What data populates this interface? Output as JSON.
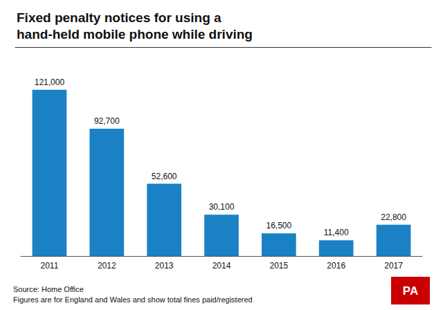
{
  "chart_data": {
    "type": "bar",
    "title": "Fixed penalty notices for using a\nhand-held mobile phone while driving",
    "categories": [
      "2011",
      "2012",
      "2013",
      "2014",
      "2015",
      "2016",
      "2017"
    ],
    "values": [
      121000,
      92700,
      52600,
      30100,
      16500,
      11400,
      22800
    ],
    "value_labels": [
      "121,000",
      "92,700",
      "52,600",
      "30,100",
      "16,500",
      "11,400",
      "22,800"
    ],
    "color": "#1a82c4",
    "ylim": [
      0,
      140000
    ],
    "grid": false,
    "tick_labels": "x",
    "data_labels": true,
    "annotations": [
      "Source: Home Office\nFigures are for England and Wales and show total fines paid/registered",
      "PA"
    ]
  }
}
